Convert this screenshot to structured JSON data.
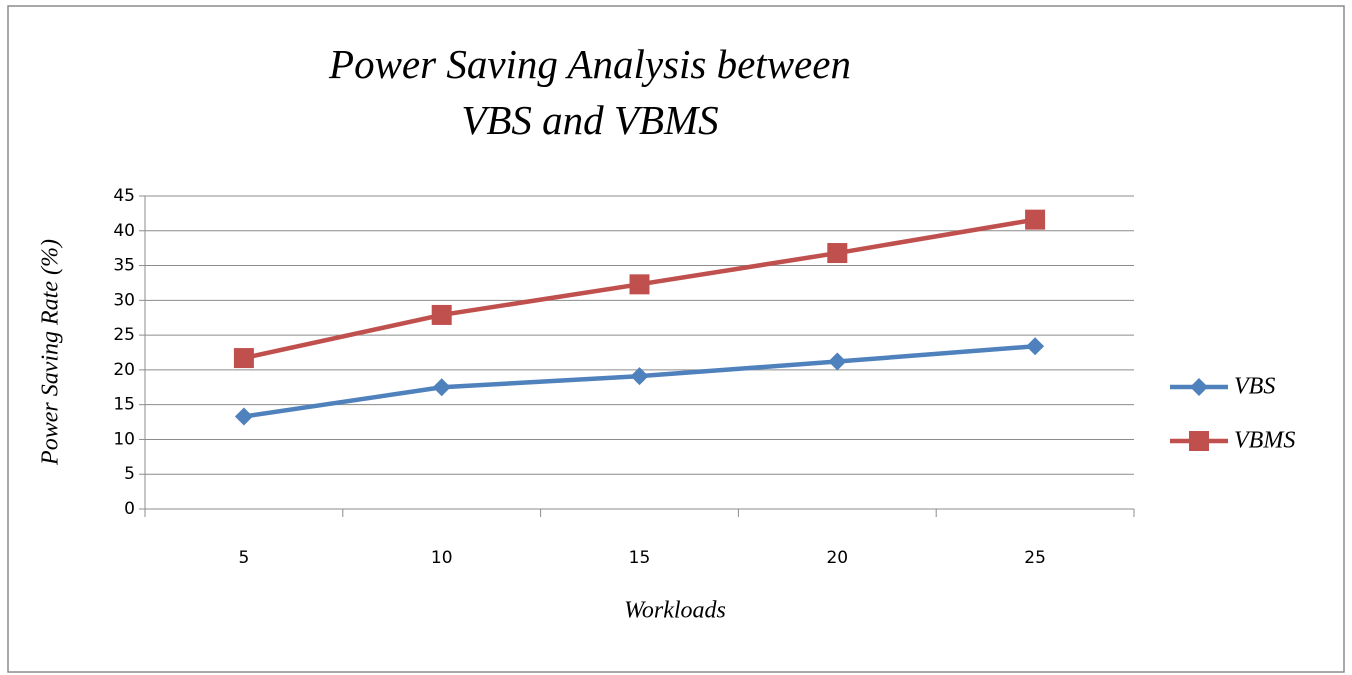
{
  "chart_data": {
    "type": "line",
    "title": "Power Saving Analysis between VBS and VBMS",
    "x_label": "Workloads",
    "y_label": "Power Saving Rate (%)",
    "categories": [
      "5",
      "10",
      "15",
      "20",
      "25"
    ],
    "series": [
      {
        "name": "VBS",
        "color": "#4f81bd",
        "marker": "diamond",
        "values": [
          13.3,
          17.5,
          19.1,
          21.2,
          23.4
        ]
      },
      {
        "name": "VBMS",
        "color": "#c0504d",
        "marker": "square",
        "values": [
          21.7,
          27.9,
          32.3,
          36.8,
          41.6
        ]
      }
    ],
    "ylim": [
      0,
      45
    ],
    "yticks": [
      0,
      5,
      10,
      15,
      20,
      25,
      30,
      35,
      40,
      45
    ],
    "grid": true,
    "legend": "right"
  }
}
